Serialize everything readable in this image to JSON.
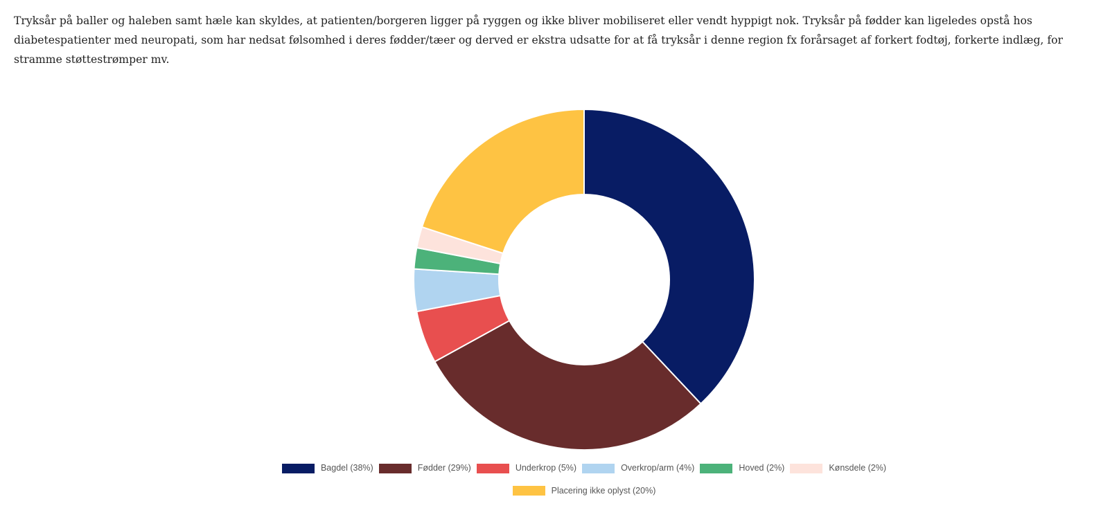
{
  "intro_text": "Tryksår på baller og haleben samt hæle kan skyldes, at patienten/borgeren ligger på ryggen og ikke bliver mobiliseret eller vendt hyppigt nok. Tryksår på fødder kan ligeledes opstå hos diabetespatienter med neuropati, som har nedsat følsomhed i deres fødder/tæer og derved er ekstra udsatte for at få tryksår i denne region fx forårsaget af forkert fodtøj, forkerte indlæg, for stramme støttestrømper mv.",
  "chart_data": {
    "type": "pie",
    "variant": "donut",
    "legend_position": "bottom",
    "slices": [
      {
        "label": "Bagdel (38%)",
        "value": 38,
        "color": "#081c64"
      },
      {
        "label": "Fødder (29%)",
        "value": 29,
        "color": "#682c2c"
      },
      {
        "label": "Underkrop (5%)",
        "value": 5,
        "color": "#e84f4f"
      },
      {
        "label": "Overkrop/arm (4%)",
        "value": 4,
        "color": "#b0d4f0"
      },
      {
        "label": "Hoved (2%)",
        "value": 2,
        "color": "#4cb27a"
      },
      {
        "label": "Kønsdele (2%)",
        "value": 2,
        "color": "#fde3dc"
      },
      {
        "label": "Placering ikke oplyst (20%)",
        "value": 20,
        "color": "#fec343"
      }
    ]
  }
}
